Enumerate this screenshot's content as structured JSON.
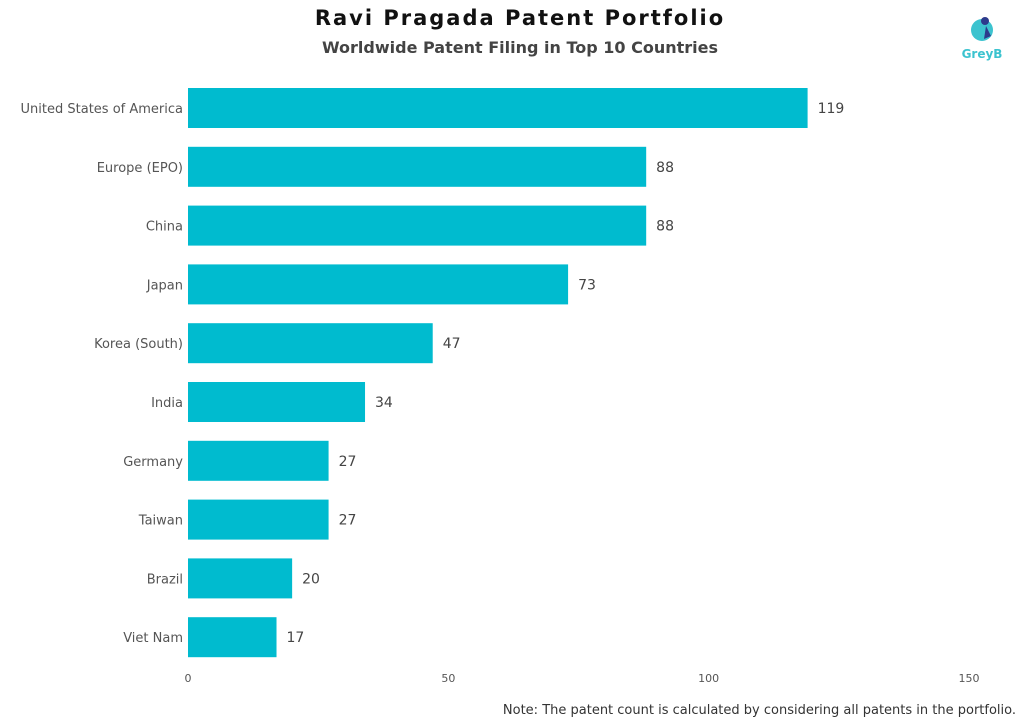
{
  "chart_data": {
    "type": "bar",
    "orientation": "horizontal",
    "title": "Ravi Pragada Patent Portfolio",
    "subtitle": "Worldwide Patent Filing in Top 10 Countries",
    "categories": [
      "United States of America",
      "Europe (EPO)",
      "China",
      "Japan",
      "Korea (South)",
      "India",
      "Germany",
      "Taiwan",
      "Brazil",
      "Viet Nam"
    ],
    "values": [
      119,
      88,
      88,
      73,
      47,
      34,
      27,
      27,
      20,
      17
    ],
    "xlim": [
      0,
      150
    ],
    "xticks": [
      0,
      50,
      100,
      150
    ],
    "grid": false,
    "bar_color": "#00BBCF"
  },
  "logo_text": "GreyB",
  "note": "Note: The patent count is calculated by considering all patents in the portfolio."
}
